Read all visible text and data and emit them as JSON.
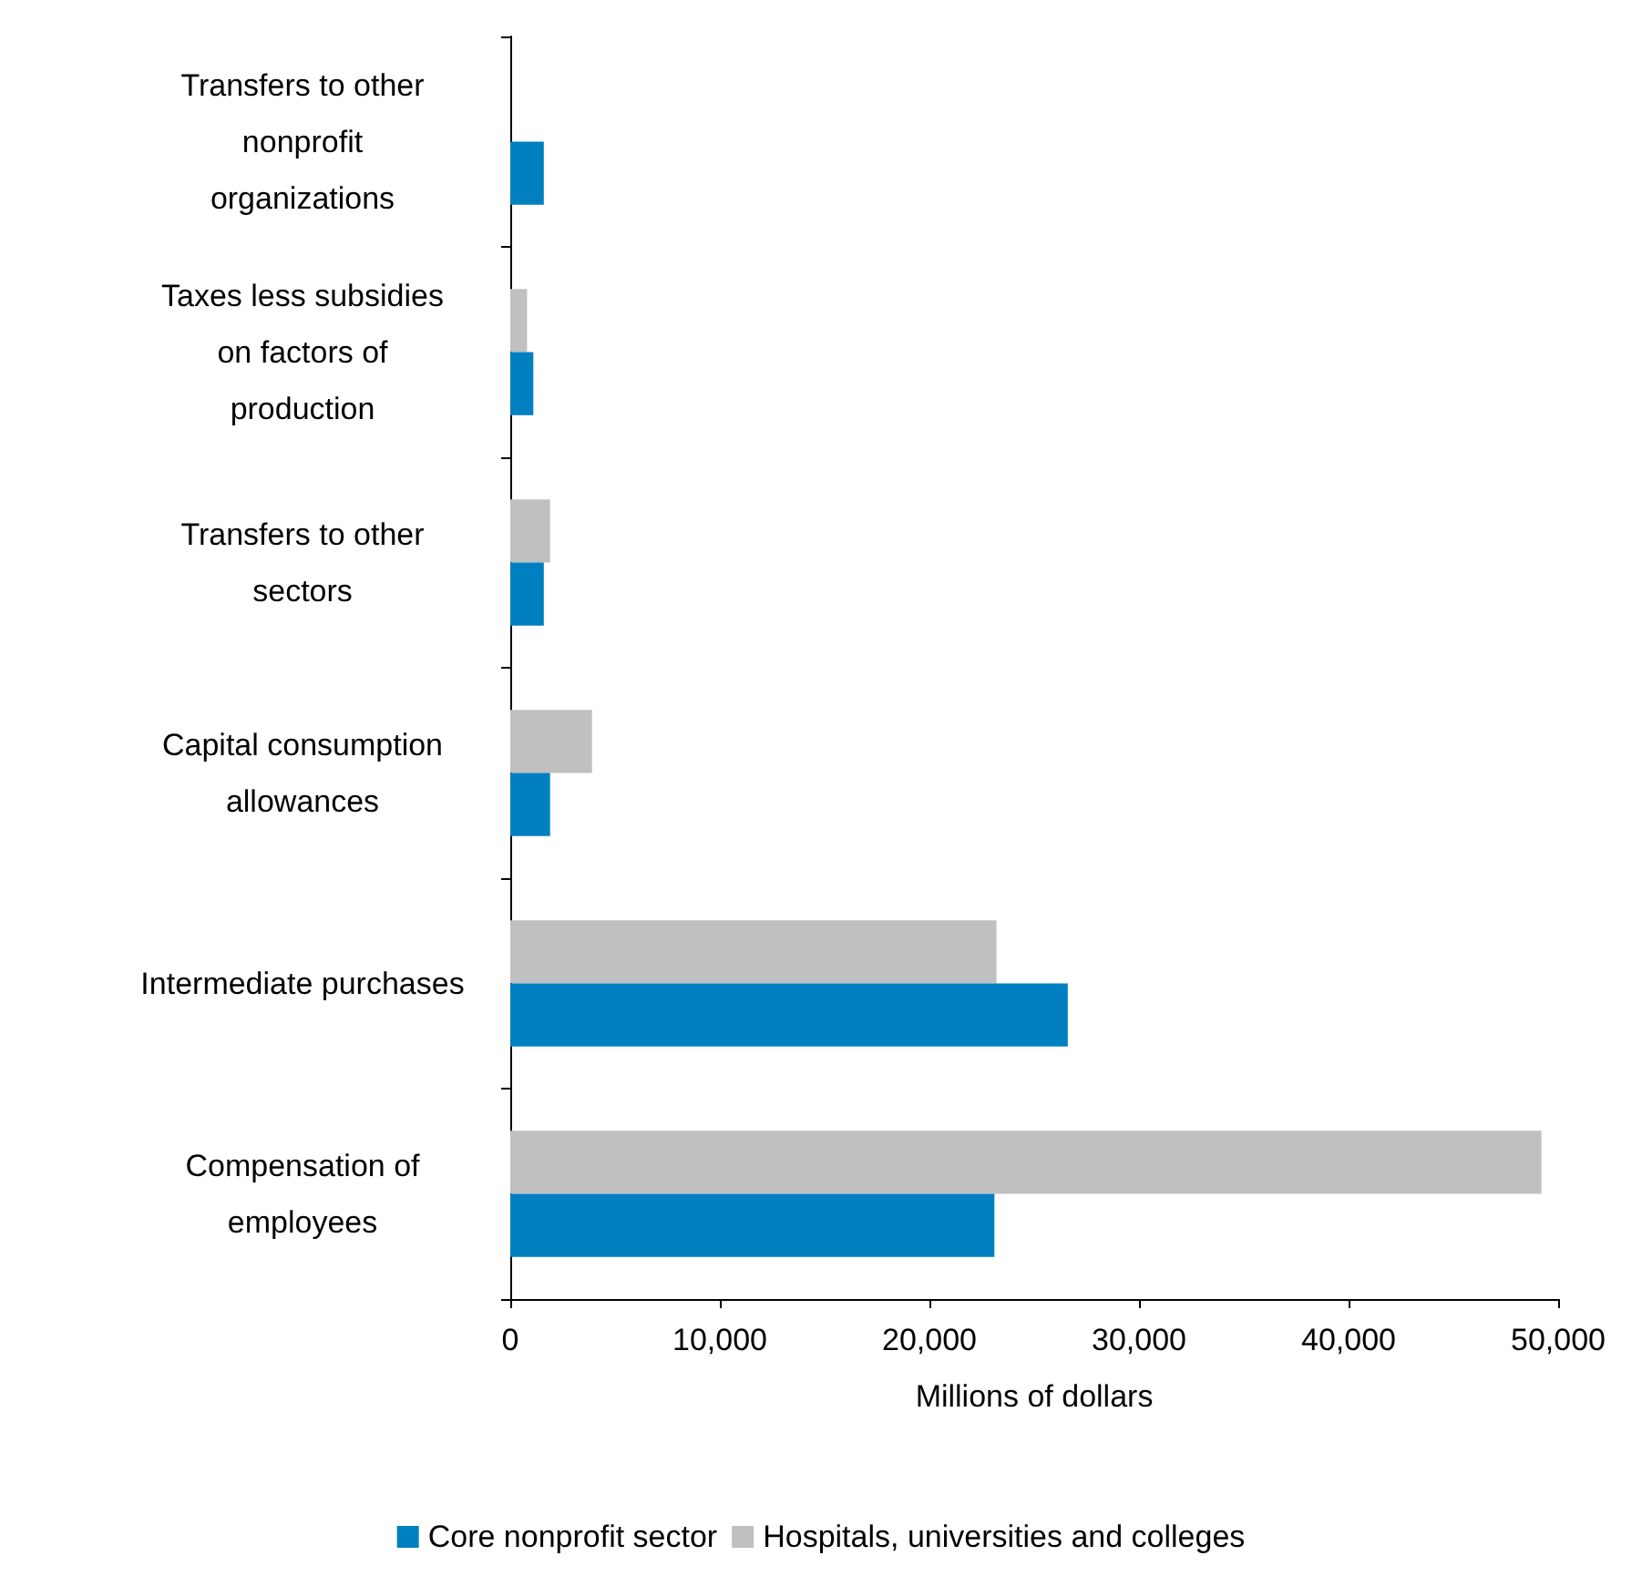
{
  "chart_data": {
    "type": "bar",
    "orientation": "horizontal",
    "xlabel": "Millions of dollars",
    "categories": [
      "Transfers to other nonprofit organizations",
      "Taxes less subsidies on factors of production",
      "Transfers to other sectors",
      "Capital consumption allowances",
      "Intermediate purchases",
      "Compensation of employees"
    ],
    "series": [
      {
        "name": "Core nonprofit sector",
        "color": "#0080c0",
        "values": [
          1600,
          1100,
          1600,
          1900,
          26600,
          23100
        ]
      },
      {
        "name": "Hospitals, universities and colleges",
        "color": "#c0c0c0",
        "values": [
          null,
          800,
          1900,
          3900,
          23200,
          49200
        ]
      }
    ],
    "xlim": [
      0,
      50000
    ],
    "xticks": [
      0,
      {
        "value": 10000,
        "label": "10,000"
      },
      {
        "value": 20000,
        "label": "20,000"
      },
      {
        "value": 30000,
        "label": "30,000"
      },
      {
        "value": 40000,
        "label": "40,000"
      },
      {
        "value": 50000,
        "label": "50,000"
      }
    ],
    "grid": false,
    "legend": "bottom"
  }
}
